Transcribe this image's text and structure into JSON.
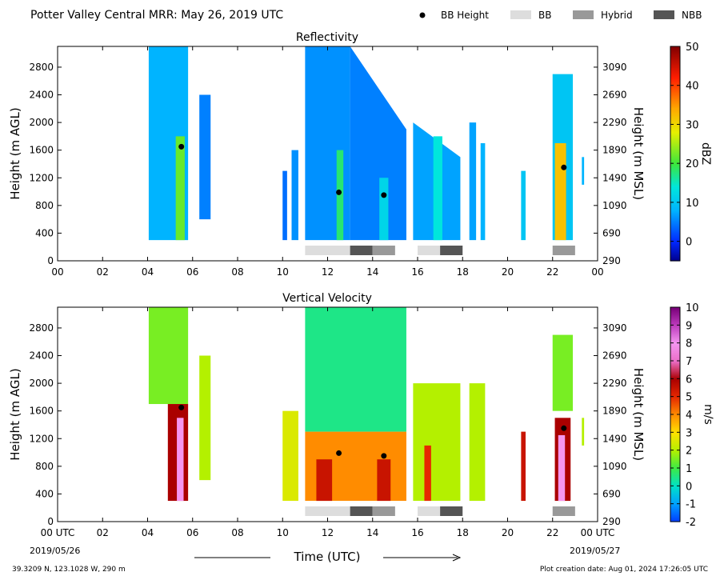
{
  "header": {
    "title": "Potter Valley Central MRR:  May 26, 2019 UTC",
    "legend": [
      {
        "label": "BB Height",
        "kind": "dot",
        "color": "#000000"
      },
      {
        "label": "BB",
        "kind": "swatch",
        "color": "#dddddd"
      },
      {
        "label": "Hybrid",
        "kind": "swatch",
        "color": "#999999"
      },
      {
        "label": "NBB",
        "kind": "swatch",
        "color": "#555555"
      }
    ]
  },
  "footer": {
    "location": "39.3209 N, 123.1028 W, 290 m",
    "creation": "Plot creation date: Aug 01, 2024 17:26:05 UTC",
    "xlabel": "Time (UTC)",
    "start_date": "2019/05/26",
    "end_date": "2019/05/27"
  },
  "chart_data": [
    {
      "type": "heatmap",
      "title": "Reflectivity",
      "ylabel": "Height (m AGL)",
      "ylabel_right": "Height (m MSL)",
      "colorbar": {
        "label": "dBZ",
        "ticks": [
          "0",
          "10",
          "20",
          "30",
          "40",
          "50"
        ],
        "range": [
          -5,
          50
        ]
      },
      "xlim": [
        0,
        24
      ],
      "x_ticks": [
        "00",
        "02",
        "04",
        "06",
        "08",
        "10",
        "12",
        "14",
        "16",
        "18",
        "20",
        "22",
        "00"
      ],
      "ylim": [
        0,
        3100
      ],
      "y_ticks": [
        0,
        400,
        800,
        1200,
        1600,
        2000,
        2400,
        2800
      ],
      "y_ticks_right": [
        "290",
        "690",
        "1090",
        "1490",
        "1890",
        "2290",
        "2690",
        "3090"
      ],
      "bb_height_points": [
        {
          "time": 5.5,
          "height": 1650
        },
        {
          "time": 12.5,
          "height": 990
        },
        {
          "time": 14.5,
          "height": 950
        },
        {
          "time": 22.5,
          "height": 1350
        }
      ],
      "bb_type_bars": [
        {
          "start": 11.0,
          "end": 13.0,
          "type": "BB"
        },
        {
          "start": 13.0,
          "end": 14.0,
          "type": "NBB"
        },
        {
          "start": 14.0,
          "end": 15.0,
          "type": "Hybrid"
        },
        {
          "start": 16.0,
          "end": 17.0,
          "type": "BB"
        },
        {
          "start": 17.0,
          "end": 18.0,
          "type": "NBB"
        },
        {
          "start": 22.0,
          "end": 23.0,
          "type": "Hybrid"
        }
      ],
      "echo_columns": [
        {
          "start": 4.05,
          "end": 5.8,
          "top_start": 3100,
          "top_end": 3100,
          "bottom": 300,
          "value": 8
        },
        {
          "start": 5.25,
          "end": 5.65,
          "top_start": 1800,
          "top_end": 1800,
          "bottom": 300,
          "value": 22
        },
        {
          "start": 6.3,
          "end": 6.8,
          "top_start": 2400,
          "top_end": 2400,
          "bottom": 600,
          "value": 5
        },
        {
          "start": 10.0,
          "end": 10.2,
          "top_start": 1300,
          "top_end": 1300,
          "bottom": 300,
          "value": 4
        },
        {
          "start": 10.4,
          "end": 10.7,
          "top_start": 1600,
          "top_end": 1600,
          "bottom": 300,
          "value": 6
        },
        {
          "start": 11.0,
          "end": 13.0,
          "top_start": 3100,
          "top_end": 3100,
          "bottom": 300,
          "value": 6
        },
        {
          "start": 13.0,
          "end": 15.5,
          "top_start": 3100,
          "top_end": 1900,
          "bottom": 300,
          "value": 5
        },
        {
          "start": 12.4,
          "end": 12.7,
          "top_start": 1600,
          "top_end": 1600,
          "bottom": 300,
          "value": 18
        },
        {
          "start": 14.3,
          "end": 14.7,
          "top_start": 1200,
          "top_end": 1200,
          "bottom": 300,
          "value": 12
        },
        {
          "start": 15.8,
          "end": 17.9,
          "top_start": 2000,
          "top_end": 1500,
          "bottom": 300,
          "value": 7
        },
        {
          "start": 16.7,
          "end": 17.1,
          "top_start": 1800,
          "top_end": 1800,
          "bottom": 300,
          "value": 14
        },
        {
          "start": 18.3,
          "end": 18.6,
          "top_start": 2000,
          "top_end": 2000,
          "bottom": 300,
          "value": 7
        },
        {
          "start": 18.8,
          "end": 19.0,
          "top_start": 1700,
          "top_end": 1700,
          "bottom": 300,
          "value": 8
        },
        {
          "start": 20.6,
          "end": 20.8,
          "top_start": 1300,
          "top_end": 1300,
          "bottom": 300,
          "value": 10
        },
        {
          "start": 22.0,
          "end": 22.9,
          "top_start": 2700,
          "top_end": 2700,
          "bottom": 300,
          "value": 10
        },
        {
          "start": 22.1,
          "end": 22.6,
          "top_start": 1700,
          "top_end": 1700,
          "bottom": 300,
          "value": 32
        },
        {
          "start": 23.3,
          "end": 23.4,
          "top_start": 1500,
          "top_end": 1500,
          "bottom": 1100,
          "value": 8
        }
      ]
    },
    {
      "type": "heatmap",
      "title": "Vertical Velocity",
      "ylabel": "Height (m AGL)",
      "ylabel_right": "Height (m MSL)",
      "colorbar": {
        "label": "m/s",
        "ticks": [
          "-2",
          "-1",
          "0",
          "1",
          "2",
          "3",
          "4",
          "5",
          "6",
          "7",
          "8",
          "9",
          "10"
        ],
        "range": [
          -2,
          10
        ]
      },
      "xlim": [
        0,
        24
      ],
      "x_ticks": [
        "00 UTC",
        "02",
        "04",
        "06",
        "08",
        "10",
        "12",
        "14",
        "16",
        "18",
        "20",
        "22",
        "00 UTC"
      ],
      "ylim": [
        0,
        3100
      ],
      "y_ticks": [
        0,
        400,
        800,
        1200,
        1600,
        2000,
        2400,
        2800
      ],
      "y_ticks_right": [
        "290",
        "690",
        "1090",
        "1490",
        "1890",
        "2290",
        "2690",
        "3090"
      ],
      "bb_height_points": [
        {
          "time": 5.5,
          "height": 1650
        },
        {
          "time": 12.5,
          "height": 990
        },
        {
          "time": 14.5,
          "height": 950
        },
        {
          "time": 22.5,
          "height": 1350
        }
      ],
      "bb_type_bars": [
        {
          "start": 11.0,
          "end": 13.0,
          "type": "BB"
        },
        {
          "start": 13.0,
          "end": 14.0,
          "type": "NBB"
        },
        {
          "start": 14.0,
          "end": 15.0,
          "type": "Hybrid"
        },
        {
          "start": 16.0,
          "end": 17.0,
          "type": "BB"
        },
        {
          "start": 17.0,
          "end": 18.0,
          "type": "NBB"
        },
        {
          "start": 22.0,
          "end": 23.0,
          "type": "Hybrid"
        }
      ],
      "velocity_layers": [
        {
          "start": 4.05,
          "end": 5.8,
          "top": 3100,
          "bottom": 1700,
          "value": 1.5
        },
        {
          "start": 4.9,
          "end": 5.8,
          "top": 1700,
          "bottom": 300,
          "value": 6.0
        },
        {
          "start": 5.3,
          "end": 5.6,
          "top": 1500,
          "bottom": 300,
          "value": 8.0
        },
        {
          "start": 6.3,
          "end": 6.8,
          "top": 2400,
          "bottom": 600,
          "value": 2.0
        },
        {
          "start": 10.0,
          "end": 10.7,
          "top": 1600,
          "bottom": 300,
          "value": 2.5
        },
        {
          "start": 11.0,
          "end": 15.5,
          "top": 3100,
          "bottom": 1300,
          "value": 0.5
        },
        {
          "start": 11.0,
          "end": 15.5,
          "top": 1300,
          "bottom": 300,
          "value": 4.0
        },
        {
          "start": 11.5,
          "end": 12.2,
          "top": 900,
          "bottom": 300,
          "value": 5.5
        },
        {
          "start": 14.2,
          "end": 14.8,
          "top": 900,
          "bottom": 300,
          "value": 5.5
        },
        {
          "start": 15.8,
          "end": 17.9,
          "top": 2000,
          "bottom": 300,
          "value": 2.0
        },
        {
          "start": 16.3,
          "end": 16.6,
          "top": 1100,
          "bottom": 300,
          "value": 5.0
        },
        {
          "start": 18.3,
          "end": 19.0,
          "top": 2000,
          "bottom": 300,
          "value": 2.0
        },
        {
          "start": 20.6,
          "end": 20.8,
          "top": 1300,
          "bottom": 300,
          "value": 5.5
        },
        {
          "start": 22.0,
          "end": 22.9,
          "top": 2700,
          "bottom": 1600,
          "value": 1.5
        },
        {
          "start": 22.1,
          "end": 22.8,
          "top": 1500,
          "bottom": 300,
          "value": 6.0
        },
        {
          "start": 22.25,
          "end": 22.55,
          "top": 1250,
          "bottom": 300,
          "value": 8.0
        },
        {
          "start": 23.3,
          "end": 23.4,
          "top": 1500,
          "bottom": 1100,
          "value": 2.0
        }
      ]
    }
  ]
}
